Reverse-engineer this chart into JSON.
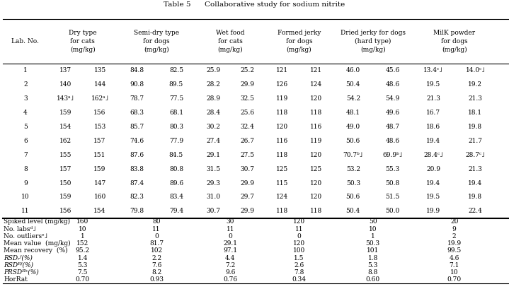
{
  "title": "Table 5      Collaborative study for sodium nitrite",
  "col_headers": [
    "Lab. No.",
    "Dry type\nfor cats\n(mg/kg)",
    "Semi-dry type\nfor dogs\n(mg/kg)",
    "Wet food\nfor cats\n(mg/kg)",
    "Formed jerky\nfor dogs\n(mg/kg)",
    "Dried jerky for dogs\n(hard type)\n(mg/kg)",
    "MilK powder\nfor dogs\n(mg/kg)"
  ],
  "lab_rows": [
    [
      "1",
      "137",
      "135",
      "84.8",
      "82.5",
      "25.9",
      "25.2",
      "121",
      "121",
      "46.0",
      "45.6",
      "13.4ᶜ˩",
      "14.0ᶜ˩"
    ],
    [
      "2",
      "140",
      "144",
      "90.8",
      "89.5",
      "28.2",
      "29.9",
      "126",
      "124",
      "50.4",
      "48.6",
      "19.5",
      "19.2"
    ],
    [
      "3",
      "143ᵃ˩",
      "162ᵃ˩",
      "78.7",
      "77.5",
      "28.9",
      "32.5",
      "119",
      "120",
      "54.2",
      "54.9",
      "21.3",
      "21.3"
    ],
    [
      "4",
      "159",
      "156",
      "68.3",
      "68.1",
      "28.4",
      "25.6",
      "118",
      "118",
      "48.1",
      "49.6",
      "16.7",
      "18.1"
    ],
    [
      "5",
      "154",
      "153",
      "85.7",
      "80.3",
      "30.2",
      "32.4",
      "120",
      "116",
      "49.0",
      "48.7",
      "18.6",
      "19.8"
    ],
    [
      "6",
      "162",
      "157",
      "74.6",
      "77.9",
      "27.4",
      "26.7",
      "116",
      "119",
      "50.6",
      "48.6",
      "19.4",
      "21.7"
    ],
    [
      "7",
      "155",
      "151",
      "87.6",
      "84.5",
      "29.1",
      "27.5",
      "118",
      "120",
      "70.7ᵇ˩",
      "69.9ᵇ˩",
      "28.4ᶜ˩",
      "28.7ᶜ˩"
    ],
    [
      "8",
      "157",
      "159",
      "83.8",
      "80.8",
      "31.5",
      "30.7",
      "125",
      "125",
      "53.2",
      "55.3",
      "20.9",
      "21.3"
    ],
    [
      "9",
      "150",
      "147",
      "87.4",
      "89.6",
      "29.3",
      "29.9",
      "115",
      "120",
      "50.3",
      "50.8",
      "19.4",
      "19.4"
    ],
    [
      "10",
      "159",
      "160",
      "82.3",
      "83.4",
      "31.0",
      "29.7",
      "124",
      "120",
      "50.6",
      "51.5",
      "19.5",
      "19.8"
    ],
    [
      "11",
      "156",
      "154",
      "79.8",
      "79.4",
      "30.7",
      "29.9",
      "118",
      "118",
      "50.4",
      "50.0",
      "19.9",
      "22.4"
    ]
  ],
  "stat_rows": [
    [
      "Spiked level (mg/kg)",
      "160",
      "80",
      "30",
      "120",
      "50",
      "20"
    ],
    [
      "No. labsᵈ˩",
      "10",
      "11",
      "11",
      "11",
      "10",
      "9"
    ],
    [
      "No. outliersᵉ˩",
      "1",
      "0",
      "0",
      "0",
      "1",
      "2"
    ],
    [
      "Mean value  (mg/kg)",
      "152",
      "81.7",
      "29.1",
      "120",
      "50.3",
      "19.9"
    ],
    [
      "Mean recovery  (%)",
      "95.2",
      "102",
      "97.1",
      "100",
      "101",
      "99.5"
    ],
    [
      "RSDᵣᶠ(%)",
      "1.4",
      "2.2",
      "4.4",
      "1.5",
      "1.8",
      "4.6"
    ],
    [
      "RSDᴿᶠ(%)",
      "5.3",
      "7.6",
      "7.2",
      "2.6",
      "5.3",
      "7.1"
    ],
    [
      "PRSDᴿʰ(%)",
      "7.5",
      "8.2",
      "9.6",
      "7.8",
      "8.8",
      "10"
    ],
    [
      "HorRat",
      "0.70",
      "0.93",
      "0.76",
      "0.34",
      "0.60",
      "0.70"
    ]
  ],
  "stat_row_labels_italic": [
    false,
    false,
    false,
    false,
    false,
    true,
    true,
    true,
    false
  ],
  "background_color": "#ffffff",
  "font_size": 6.5,
  "header_font_size": 7.0
}
